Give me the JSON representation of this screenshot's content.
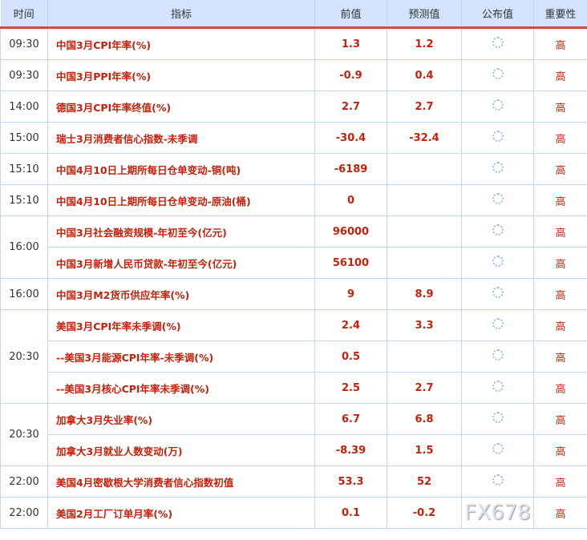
{
  "header": [
    "时间",
    "指标",
    "前值",
    "预测值",
    "公布值",
    "重要性"
  ],
  "rows": [
    {
      "time": "09:30",
      "name": "中国3月CPI年率(%)",
      "prev": "1.3",
      "forecast": "1.2",
      "imp": "高"
    },
    {
      "time": "09:30",
      "name": "中国3月PPI年率(%)",
      "prev": "-0.9",
      "forecast": "0.4",
      "imp": "高"
    },
    {
      "time": "14:00",
      "name": "德国3月CPI年率终值(%)",
      "prev": "2.7",
      "forecast": "2.7",
      "imp": "高"
    },
    {
      "time": "15:00",
      "name": "瑞士3月消费者信心指数-未季调",
      "prev": "-30.4",
      "forecast": "-32.4",
      "imp": "高"
    },
    {
      "time": "15:10",
      "name": "中国4月10日上期所每日仓单变动-铜(吨)",
      "prev": "-6189",
      "forecast": "",
      "imp": "高"
    },
    {
      "time": "15:10",
      "name": "中国4月10日上期所每日仓单变动-原油(桶)",
      "prev": "0",
      "forecast": "",
      "imp": "高"
    },
    {
      "time": "16:00",
      "name": "中国3月社会融资规模-年初至今(亿元)",
      "prev": "96000",
      "forecast": "",
      "imp": "高"
    },
    {
      "time": "",
      "name": "中国3月新增人民币贷款-年初至今(亿元)",
      "prev": "56100",
      "forecast": "",
      "imp": "高"
    },
    {
      "time": "16:00",
      "name": "中国3月M2货币供应年率(%)",
      "prev": "9",
      "forecast": "8.9",
      "imp": "高"
    },
    {
      "time": "20:30",
      "name": "美国3月CPI年率未季调(%)",
      "prev": "2.4",
      "forecast": "3.3",
      "imp": "高"
    },
    {
      "time": "",
      "name": "--美国3月能源CPI年率-未季调(%)",
      "prev": "0.5",
      "forecast": "",
      "imp": "高"
    },
    {
      "time": "",
      "name": "--美国3月核心CPI年率未季调(%)",
      "prev": "2.5",
      "forecast": "2.7",
      "imp": "高"
    },
    {
      "time": "20:30",
      "name": "加拿大3月失业率(%)",
      "prev": "6.7",
      "forecast": "6.8",
      "imp": "高"
    },
    {
      "time": "",
      "name": "加拿大3月就业人数变动(万)",
      "prev": "-8.39",
      "forecast": "1.5",
      "imp": "高"
    },
    {
      "time": "22:00",
      "name": "美国4月密歇根大学消费者信心指数初值",
      "prev": "53.3",
      "forecast": "52",
      "imp": "高"
    },
    {
      "time": "22:00",
      "name": "美国2月工厂订单月率(%)",
      "prev": "0.1",
      "forecast": "-0.2",
      "imp": "高"
    }
  ],
  "watermark": "FX678",
  "colors": {
    "header_bg": "#d3e3fb",
    "accent": "#c8200a",
    "divider": "#cf4b3c"
  },
  "loading_icon": "spinner-icon"
}
